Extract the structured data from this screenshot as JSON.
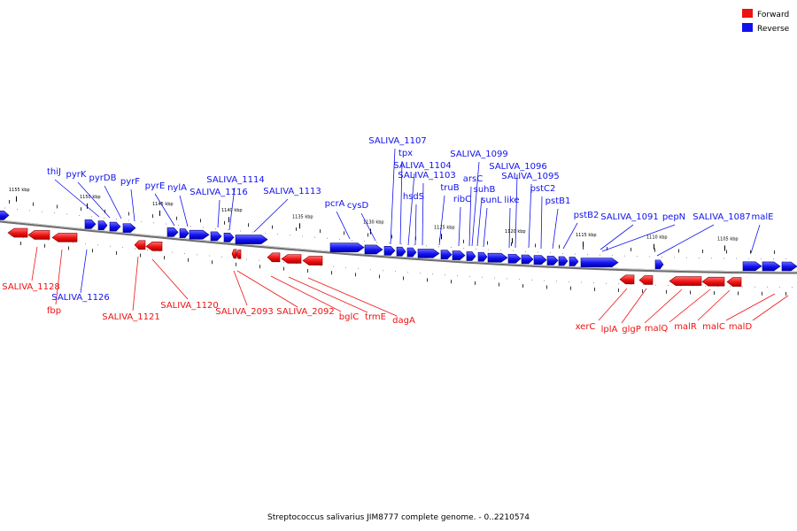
{
  "colors": {
    "forward": "#ee1111",
    "reverse": "#1111ee",
    "backbone": "#8a8a8a"
  },
  "legend": [
    {
      "label": "Forward",
      "color": "#ee1111"
    },
    {
      "label": "Reverse",
      "color": "#1111ee"
    }
  ],
  "caption": "Streptococcus salivarius JIM8777 complete genome. - 0..2210574",
  "ticks": [
    "1155 kbp",
    "1150 kbp",
    "1145 kbp",
    "1140 kbp",
    "1135 kbp",
    "1130 kbp",
    "1125 kbp",
    "1120 kbp",
    "1115 kbp",
    "1110 kbp",
    "1105 kbp"
  ],
  "reverse_labels": [
    "thiJ",
    "pyrK",
    "pyrDB",
    "pyrF",
    "pyrE",
    "nylA",
    "SALIVA_1116",
    "SALIVA_1114",
    "SALIVA_1113",
    "pcrA",
    "cysD",
    "SALIVA_1107",
    "tpx",
    "SALIVA_1104",
    "hsdS",
    "SALIVA_1103",
    "truB",
    "ribC",
    "SALIVA_1099",
    "arsC",
    "suhB",
    "sunL",
    "like",
    "SALIVA_1096",
    "SALIVA_1095",
    "pstC2",
    "pstB1",
    "pstB2",
    "SALIVA_1091",
    "pepN",
    "SALIVA_1087",
    "malE",
    "SALIVA_1126"
  ],
  "forward_labels": [
    "SALIVA_1128",
    "fbp",
    "SALIVA_1121",
    "SALIVA_1120",
    "SALIVA_2093",
    "SALIVA_2092",
    "bglC",
    "trmE",
    "dagA",
    "xerC",
    "lplA",
    "glgP",
    "malQ",
    "malR",
    "malC",
    "malD"
  ]
}
